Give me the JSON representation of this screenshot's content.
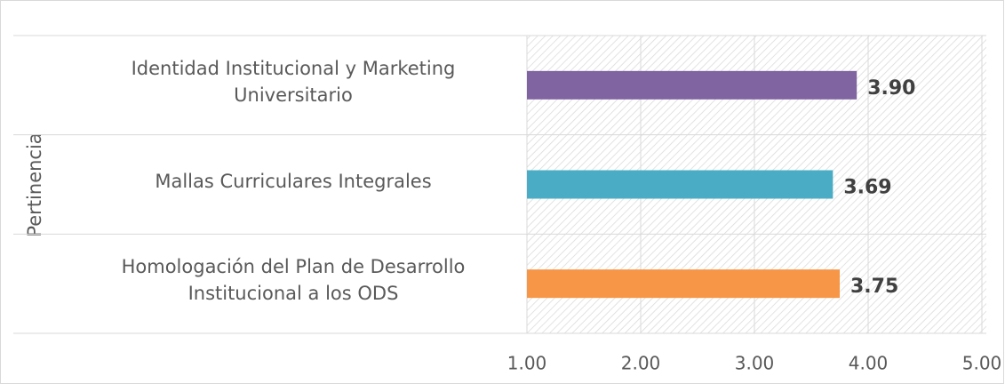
{
  "chart_data": {
    "type": "barh",
    "group_label": "Pertinencia",
    "categories": [
      "Identidad Institucional y Marketing Universitario",
      "Mallas Curriculares Integrales",
      "Homologación del Plan de Desarrollo Institucional a los ODS"
    ],
    "values": [
      3.9,
      3.69,
      3.75
    ],
    "value_labels": [
      "3.90",
      "3.69",
      "3.75"
    ],
    "colors": [
      "#8064a2",
      "#4bacc6",
      "#f79646"
    ],
    "xlim": [
      1,
      5
    ],
    "xticks": [
      {
        "value": 1,
        "label": "1.00"
      },
      {
        "value": 2,
        "label": "2.00"
      },
      {
        "value": 3,
        "label": "3.00"
      },
      {
        "value": 4,
        "label": "4.00"
      },
      {
        "value": 5,
        "label": "5.00"
      }
    ],
    "grid": true
  }
}
